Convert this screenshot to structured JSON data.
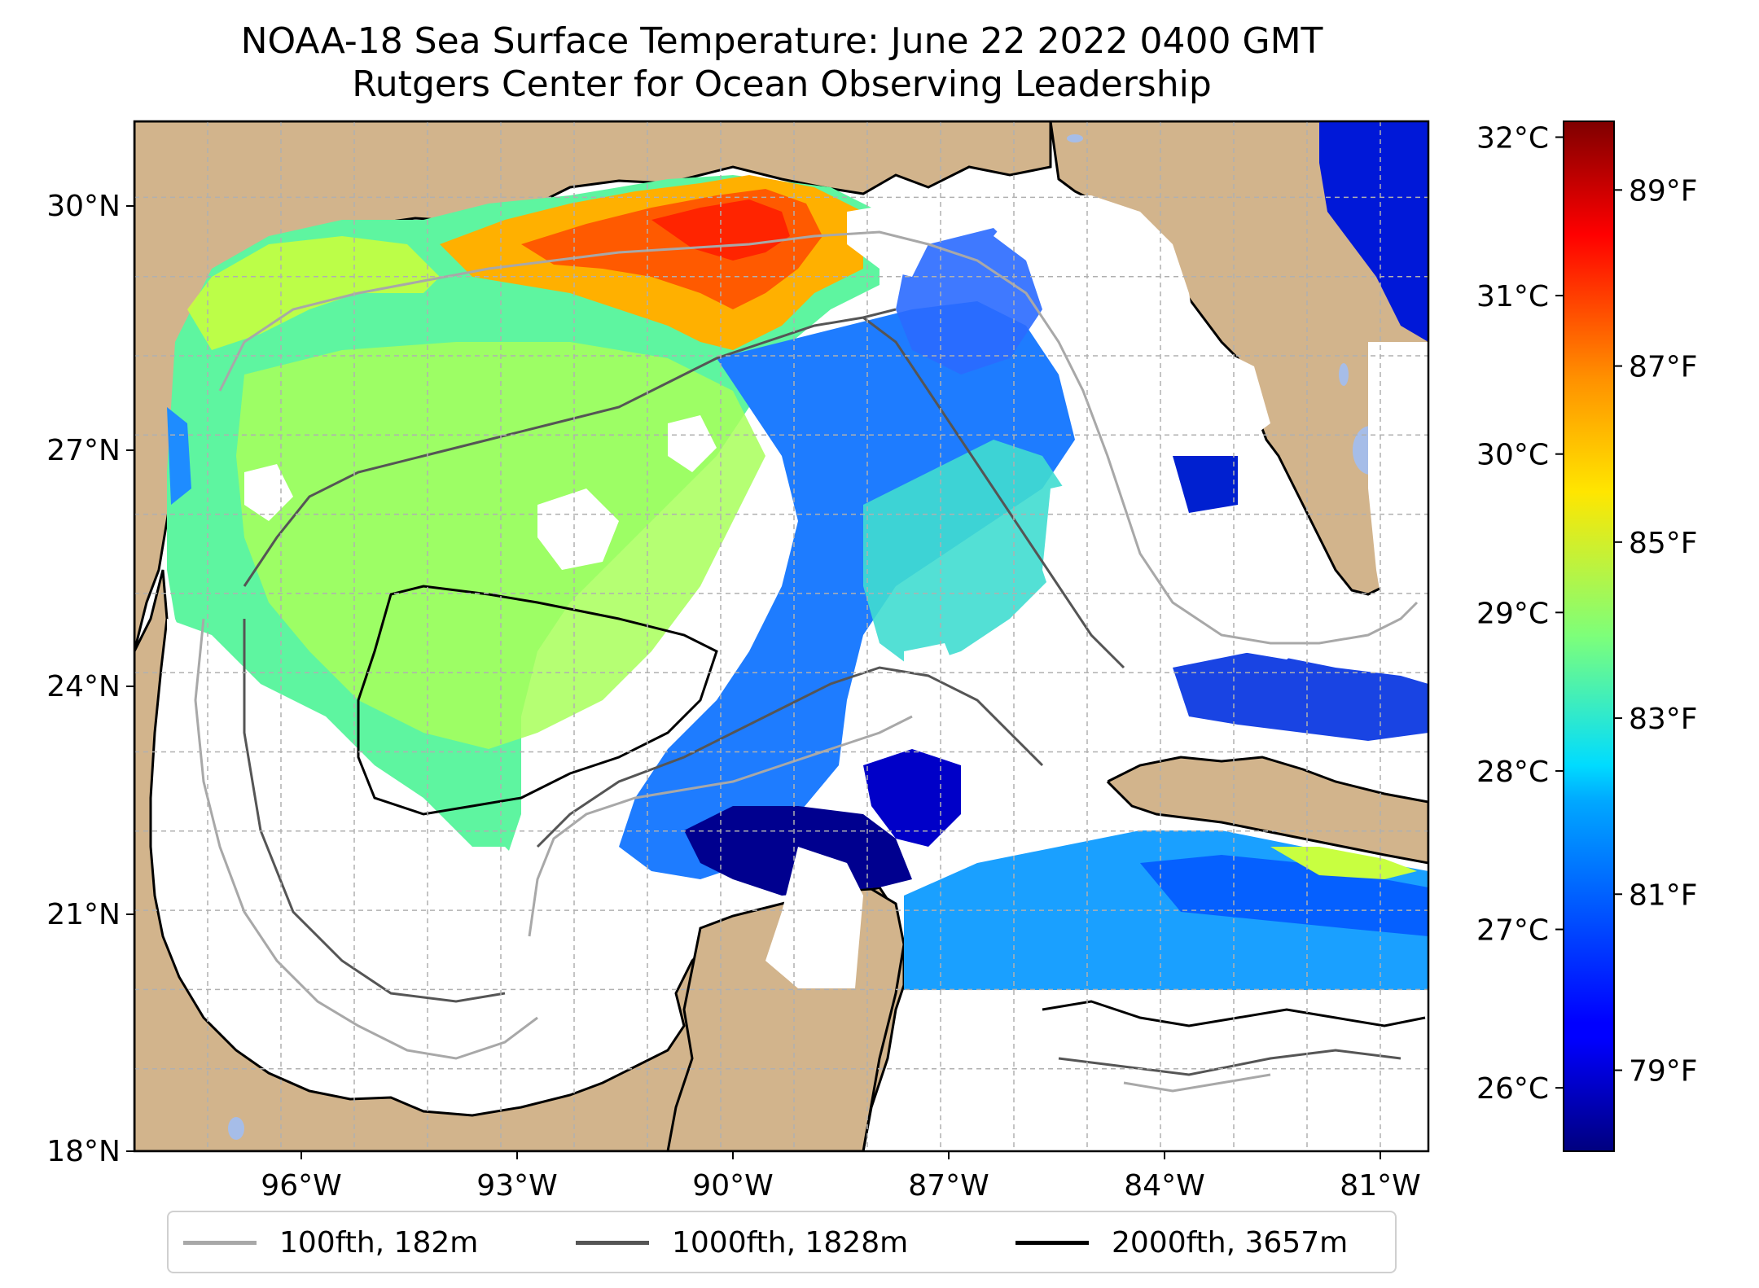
{
  "title_line1": "NOAA-18 Sea Surface Temperature: June 22 2022 0400 GMT",
  "title_line2": "Rutgers Center for Ocean Observing Leadership",
  "map": {
    "lat_range": [
      18,
      31
    ],
    "lon_range": [
      -98,
      -80.3
    ],
    "lat_ticks": [
      "18°N",
      "21°N",
      "24°N",
      "27°N",
      "30°N"
    ],
    "lon_ticks": [
      "96°W",
      "93°W",
      "90°W",
      "87°W",
      "84°W",
      "81°W"
    ],
    "colors": {
      "land": "#d2b48c",
      "lakes": "#a6bde8",
      "no_data": "#ffffff",
      "grid": "#b0b0b0"
    }
  },
  "colorbar": {
    "celsius_ticks": [
      "32°C",
      "31°C",
      "30°C",
      "29°C",
      "28°C",
      "27°C",
      "26°C"
    ],
    "fahrenheit_ticks": [
      "89°F",
      "87°F",
      "85°F",
      "83°F",
      "81°F",
      "79°F"
    ],
    "colormap": "jet",
    "range_c": [
      25.6,
      32.1
    ],
    "celsius_values": [
      32,
      31,
      30,
      29,
      28,
      27,
      26
    ],
    "fahrenheit_values": [
      89,
      87,
      85,
      83,
      81,
      79
    ]
  },
  "legend": {
    "items": [
      {
        "label": "100fth, 182m",
        "color": "#a8a8a8"
      },
      {
        "label": "1000fth, 1828m",
        "color": "#555555"
      },
      {
        "label": "2000fth, 3657m",
        "color": "#000000"
      }
    ]
  }
}
